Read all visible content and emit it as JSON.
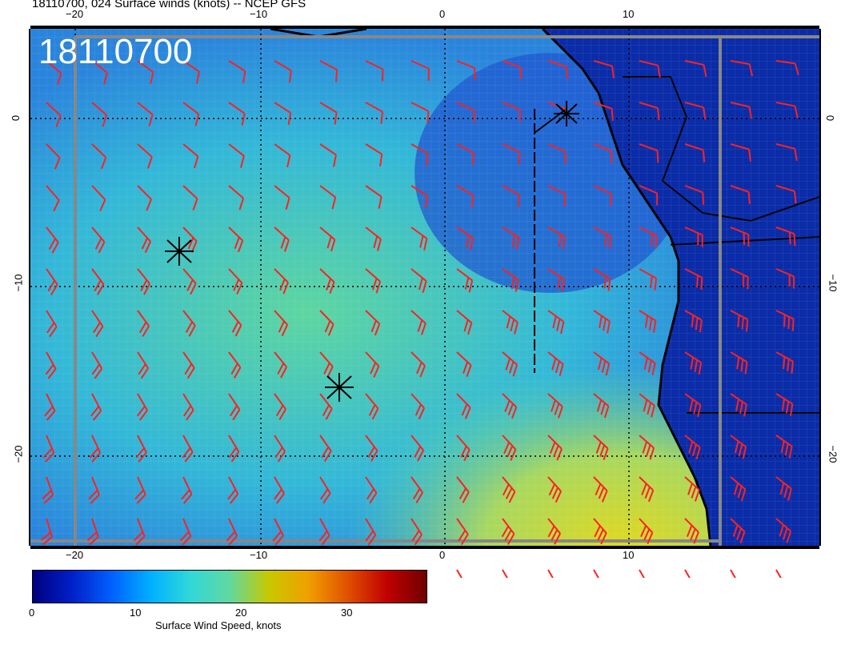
{
  "title": "18110700, 024 Surface winds (knots) -- NCEP GFS",
  "stamp": "18110700",
  "axes": {
    "top_ticks": [
      "−20",
      "−10",
      "0",
      "10"
    ],
    "bottom_ticks": [
      "−20",
      "−10",
      "0",
      "10"
    ],
    "left_ticks": [
      "0",
      "−10",
      "−20"
    ],
    "right_ticks": [
      "0",
      "−10",
      "−20"
    ]
  },
  "colorbar": {
    "ticks": [
      "0",
      "10",
      "20",
      "30"
    ],
    "label": "Surface Wind Speed, knots",
    "range": [
      0,
      37
    ]
  },
  "colors": {
    "barb": "#ff2020",
    "ocean_low": "#1f5fd6",
    "ocean_mid": "#33b8d8",
    "ocean_high": "#5ed6a0",
    "land": "#0a2ca8"
  },
  "markers": {
    "icon": "asterisk-marker-icon",
    "count": 3
  }
}
